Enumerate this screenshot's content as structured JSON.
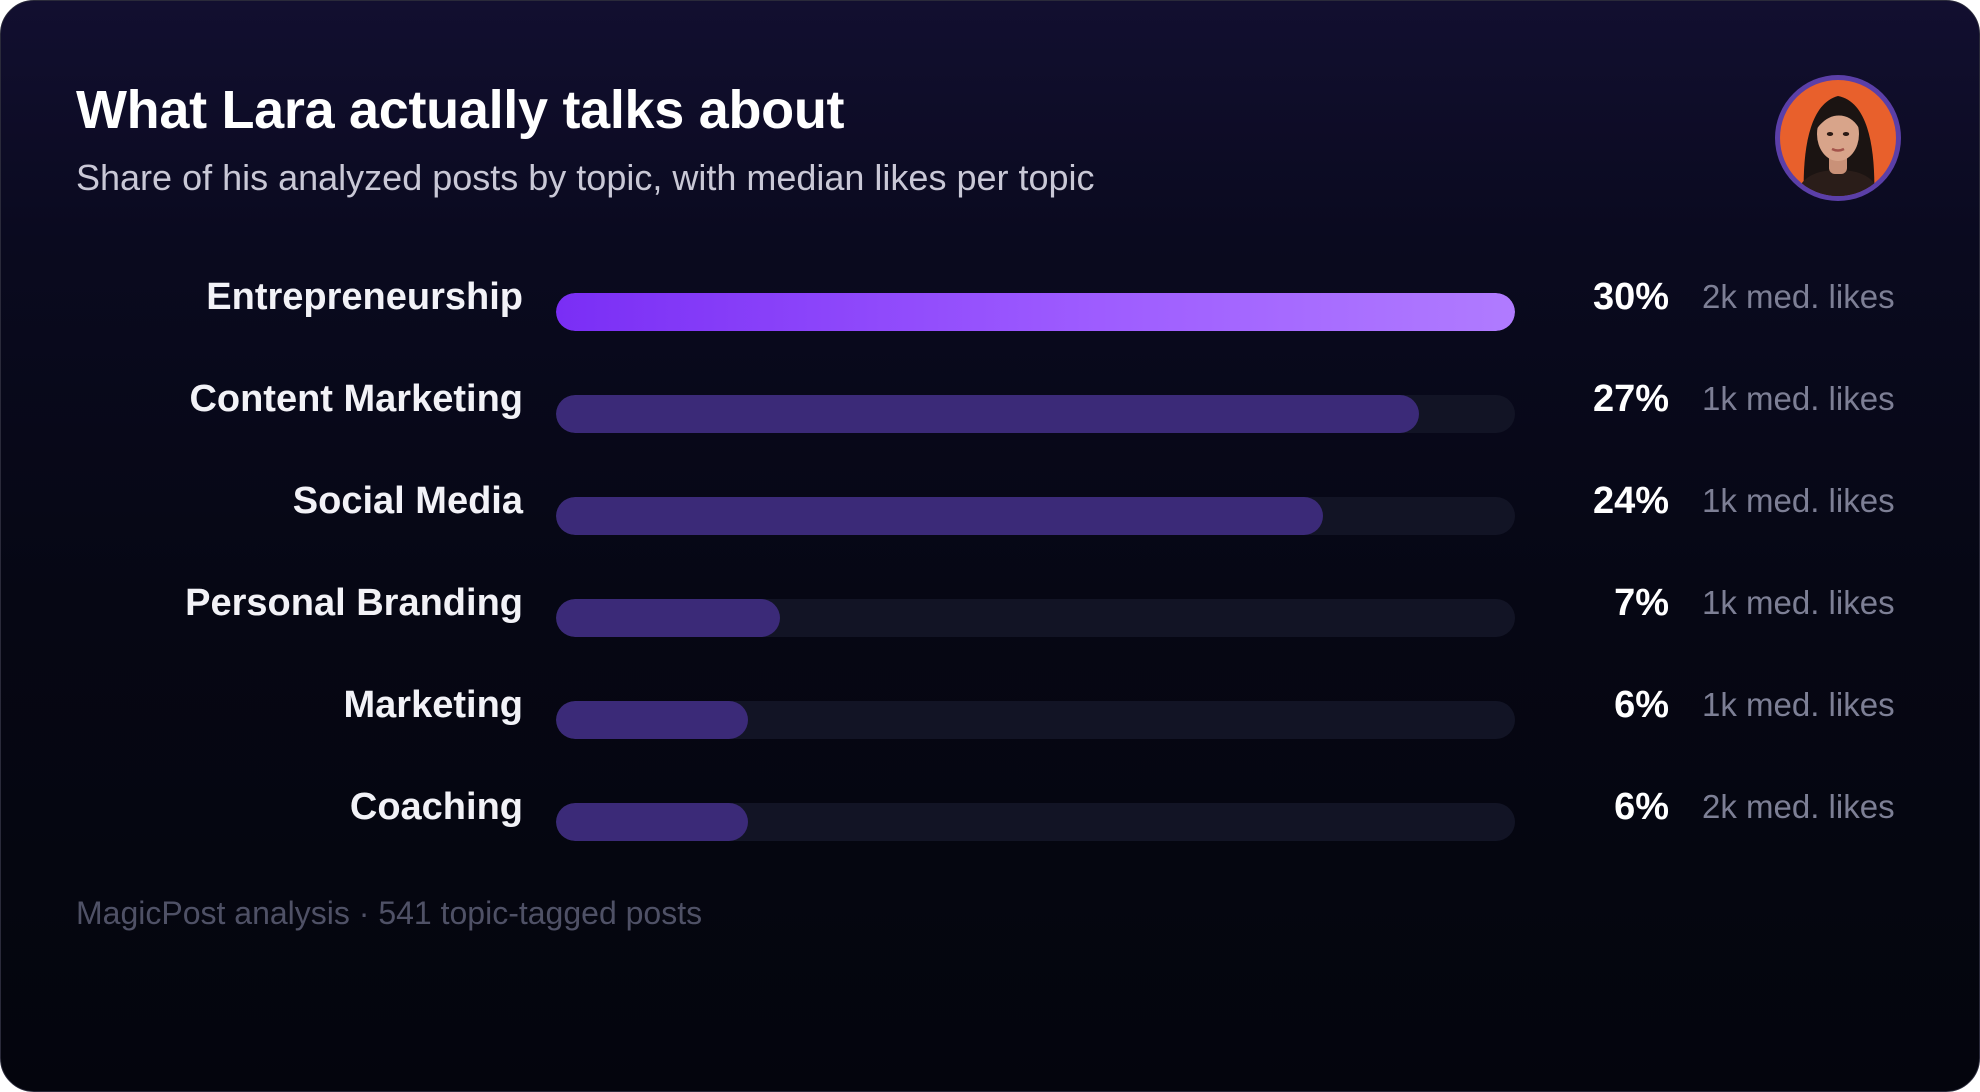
{
  "header": {
    "title": "What Lara actually talks about",
    "subtitle": "Share of his analyzed posts by topic, with median likes per topic"
  },
  "avatar": {
    "icon": "profile-photo",
    "ring_color": "#5b3fa8",
    "bg_color": "#e8602c"
  },
  "colors": {
    "top_bar_start": "#7a2ef5",
    "top_bar_end": "#b07bff",
    "bar_fill": "#3b2a78",
    "track": "#121425"
  },
  "chart_data": {
    "type": "bar",
    "orientation": "horizontal",
    "categories": [
      "Entrepreneurship",
      "Content Marketing",
      "Social Media",
      "Personal Branding",
      "Marketing",
      "Coaching"
    ],
    "values": [
      30,
      27,
      24,
      7,
      6,
      6
    ],
    "value_labels": [
      "30%",
      "27%",
      "24%",
      "7%",
      "6%",
      "6%"
    ],
    "median_likes": [
      "2k med. likes",
      "1k med. likes",
      "1k med. likes",
      "1k med. likes",
      "1k med. likes",
      "2k med. likes"
    ],
    "title": "What Lara actually talks about",
    "subtitle": "Share of his analyzed posts by topic, with median likes per topic",
    "xlim": [
      0,
      30
    ],
    "grid": false
  },
  "footer": {
    "text": "MagicPost analysis · 541 topic-tagged posts"
  }
}
